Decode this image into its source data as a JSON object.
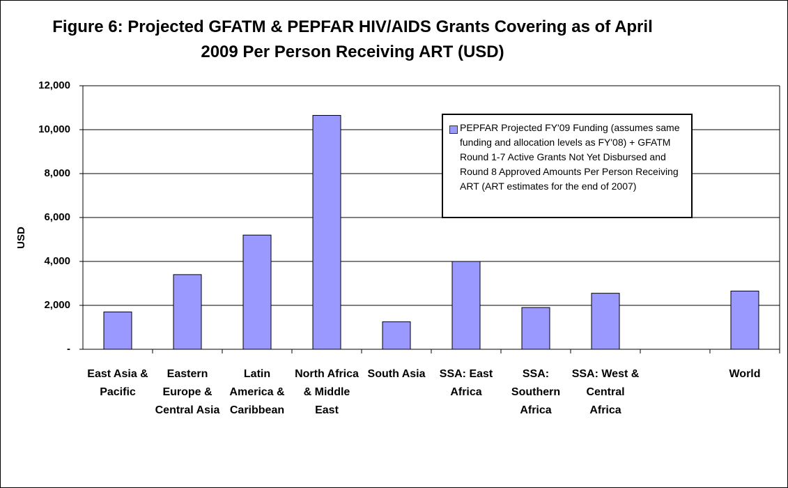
{
  "chart_data": {
    "type": "bar",
    "title": "Figure 6: Projected GFATM & PEPFAR HIV/AIDS Grants Covering as of April 2009 Per Person Receiving ART (USD)",
    "y_label": "USD",
    "categories": [
      "East Asia & Pacific",
      "Eastern Europe & Central Asia",
      "Latin America & Caribbean",
      "North Africa & Middle East",
      "South Asia",
      "SSA: East Africa",
      "SSA: Southern Africa",
      "SSA: West & Central Africa",
      null,
      "World"
    ],
    "series": [
      {
        "name": "PEPFAR Projected FY'09 Funding (assumes same funding and allocation levels as FY'08) + GFATM Round 1-7 Active Grants Not Yet Disbursed and Round 8 Approved Amounts Per Person Receiving ART (ART estimates for the end of 2007)",
        "color": "#9999ff",
        "values": [
          1700,
          3400,
          5200,
          10650,
          1250,
          4000,
          1900,
          2550,
          null,
          2650
        ]
      }
    ],
    "ylim": [
      0,
      12000
    ],
    "yticks": [
      {
        "value": 0,
        "label": "-"
      },
      {
        "value": 2000,
        "label": "2,000"
      },
      {
        "value": 4000,
        "label": "4,000"
      },
      {
        "value": 6000,
        "label": "6,000"
      },
      {
        "value": 8000,
        "label": "8,000"
      },
      {
        "value": 10000,
        "label": "10,000"
      },
      {
        "value": 12000,
        "label": "12,000"
      }
    ],
    "grid": true
  }
}
